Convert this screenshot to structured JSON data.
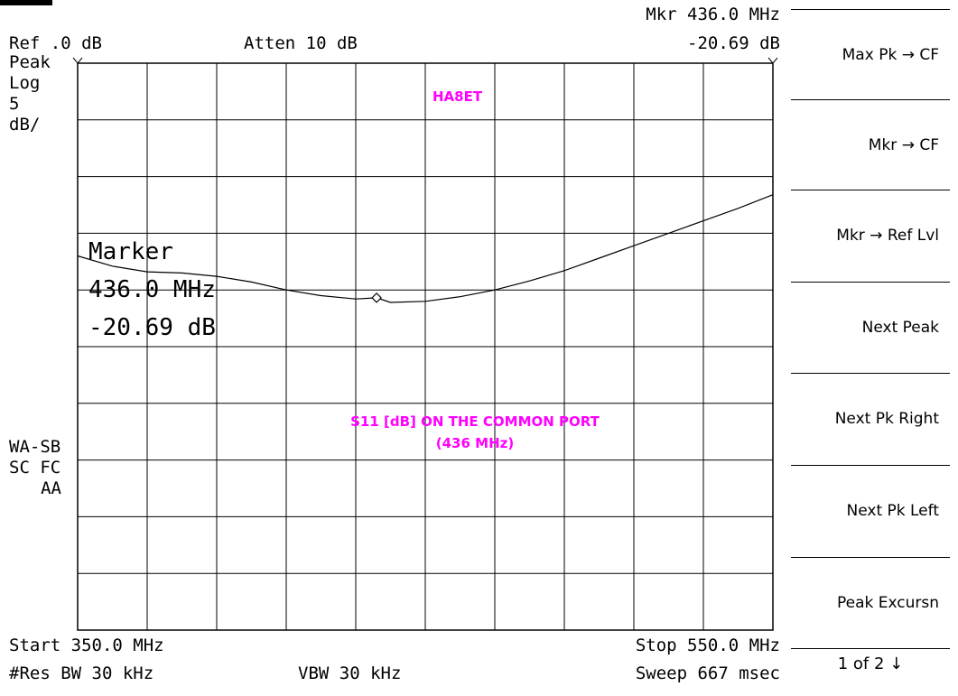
{
  "header": {
    "ref_level": "Ref .0 dB",
    "attenuation": "Atten 10 dB",
    "mkr_freq": "Mkr 436.0 MHz",
    "mkr_level": "-20.69 dB"
  },
  "left_panel": {
    "detector": "Peak",
    "scale": "Log",
    "scale_value": "5",
    "scale_unit": "dB/",
    "status1": "WA-SB",
    "status2": "SC FC",
    "status3": "AA"
  },
  "marker_readout": {
    "title": "Marker",
    "freq": "436.0 MHz",
    "level": "-20.69 dB"
  },
  "annotations": {
    "callsign": "HA8ET",
    "caption_line1": "S11 [dB] ON THE COMMON PORT",
    "caption_line2": "(436 MHz)"
  },
  "footer": {
    "start": "Start 350.0 MHz",
    "stop": "Stop 550.0 MHz",
    "res_bw": "#Res BW 30 kHz",
    "vbw": "VBW 30 kHz",
    "sweep": "Sweep 667 msec"
  },
  "softkeys": [
    {
      "label": "Max Pk → CF"
    },
    {
      "label": "Mkr → CF"
    },
    {
      "label": "Mkr → Ref Lvl"
    },
    {
      "label": "Next Peak"
    },
    {
      "label": "Next Pk Right"
    },
    {
      "label": "Next Pk Left"
    },
    {
      "label": "Peak Excursn"
    }
  ],
  "page_indicator": "1 of 2 ↓",
  "colors": {
    "annotation": "#ff00ff",
    "trace": "#000000",
    "grid": "#000000"
  },
  "chart_data": {
    "type": "line",
    "title": "",
    "xlabel": "",
    "ylabel": "",
    "xlim": [
      350,
      550
    ],
    "ylim": [
      -50,
      0
    ],
    "x_unit": "MHz",
    "y_unit": "dB",
    "grid": true,
    "grid_divisions": [
      10,
      10
    ],
    "series": [
      {
        "x": [
          350,
          360,
          370,
          380,
          390,
          400,
          410,
          420,
          430,
          436,
          440,
          450,
          460,
          470,
          480,
          490,
          500,
          510,
          520,
          530,
          540,
          550
        ],
        "values": [
          -17.0,
          -17.9,
          -18.4,
          -18.5,
          -18.8,
          -19.3,
          -20.0,
          -20.5,
          -20.8,
          -20.69,
          -21.1,
          -21.0,
          -20.6,
          -20.0,
          -19.2,
          -18.3,
          -17.2,
          -16.1,
          -15.0,
          -13.9,
          -12.8,
          -11.6
        ]
      }
    ],
    "marker": {
      "x": 436.0,
      "y": -20.69
    }
  }
}
